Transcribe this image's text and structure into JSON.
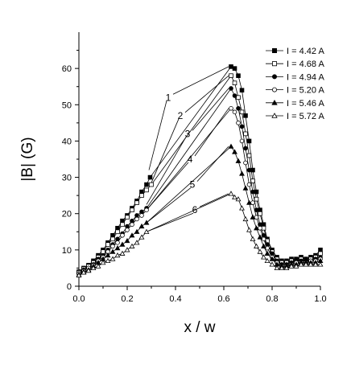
{
  "chart_data": {
    "type": "line",
    "xlabel": "x / w",
    "ylabel": "|B| (G)",
    "xlim": [
      0.0,
      1.0
    ],
    "ylim": [
      0,
      70
    ],
    "xticks": [
      0.0,
      0.2,
      0.4,
      0.6,
      0.8,
      1.0
    ],
    "xtick_labels": [
      "0.0",
      "0.2",
      "0.4",
      "0.6",
      "0.8",
      "1.0"
    ],
    "yticks": [
      0,
      10,
      20,
      30,
      40,
      50,
      60
    ],
    "ytick_labels": [
      "0",
      "10",
      "20",
      "30",
      "40",
      "50",
      "60"
    ],
    "grid": false,
    "legend_position": "top-right",
    "series": [
      {
        "name": "I = 4.42 A",
        "marker": "square-filled",
        "x": [
          0.0,
          0.02,
          0.04,
          0.06,
          0.08,
          0.1,
          0.12,
          0.14,
          0.16,
          0.18,
          0.2,
          0.22,
          0.24,
          0.26,
          0.28,
          0.295,
          0.63,
          0.645,
          0.66,
          0.675,
          0.69,
          0.705,
          0.72,
          0.735,
          0.75,
          0.765,
          0.78,
          0.8,
          0.82,
          0.84,
          0.86,
          0.88,
          0.9,
          0.92,
          0.94,
          0.96,
          0.98,
          1.0
        ],
        "y": [
          4.0,
          5.0,
          5.8,
          7.0,
          8.5,
          10.0,
          12.0,
          14.0,
          16.0,
          18.0,
          19.5,
          21.5,
          23.5,
          26.0,
          28.0,
          30.0,
          60.5,
          60.0,
          58.0,
          54.0,
          47.0,
          40.0,
          32.0,
          26.0,
          21.0,
          17.0,
          13.0,
          10.0,
          8.0,
          7.0,
          7.0,
          7.5,
          7.5,
          8.0,
          7.5,
          8.0,
          8.5,
          10.0
        ]
      },
      {
        "name": "I = 4.68 A",
        "marker": "square-open",
        "x": [
          0.0,
          0.02,
          0.04,
          0.06,
          0.08,
          0.1,
          0.12,
          0.14,
          0.16,
          0.18,
          0.2,
          0.22,
          0.24,
          0.26,
          0.28,
          0.3,
          0.63,
          0.645,
          0.66,
          0.675,
          0.69,
          0.705,
          0.72,
          0.735,
          0.75,
          0.765,
          0.78,
          0.8,
          0.82,
          0.84,
          0.86,
          0.88,
          0.9,
          0.92,
          0.94,
          0.96,
          0.98,
          1.0
        ],
        "y": [
          3.8,
          4.8,
          5.5,
          6.5,
          8.0,
          9.5,
          11.5,
          13.0,
          15.0,
          17.0,
          19.0,
          21.0,
          23.0,
          25.0,
          26.5,
          28.0,
          58.0,
          56.0,
          52.0,
          48.0,
          42.0,
          36.0,
          29.0,
          24.0,
          20.0,
          16.0,
          12.5,
          9.5,
          7.5,
          6.5,
          6.5,
          7.0,
          7.0,
          7.5,
          7.0,
          7.5,
          8.0,
          9.0
        ]
      },
      {
        "name": "I = 4.94 A",
        "marker": "circle-filled",
        "x": [
          0.0,
          0.02,
          0.04,
          0.06,
          0.08,
          0.1,
          0.12,
          0.14,
          0.16,
          0.18,
          0.2,
          0.22,
          0.24,
          0.26,
          0.28,
          0.63,
          0.645,
          0.66,
          0.675,
          0.69,
          0.705,
          0.72,
          0.735,
          0.75,
          0.765,
          0.78,
          0.8,
          0.82,
          0.84,
          0.86,
          0.88,
          0.9,
          0.92,
          0.94,
          0.96,
          0.98,
          1.0
        ],
        "y": [
          3.5,
          4.5,
          5.0,
          6.0,
          7.5,
          8.5,
          10.0,
          11.5,
          13.0,
          14.5,
          16.5,
          18.0,
          19.5,
          20.5,
          21.5,
          54.5,
          52.5,
          49.0,
          44.0,
          38.0,
          32.0,
          26.0,
          21.0,
          17.0,
          14.0,
          11.5,
          9.0,
          7.0,
          6.0,
          6.0,
          6.5,
          7.0,
          7.0,
          7.0,
          7.0,
          7.5,
          8.0
        ]
      },
      {
        "name": "I = 5.20 A",
        "marker": "circle-open",
        "x": [
          0.0,
          0.02,
          0.04,
          0.06,
          0.08,
          0.1,
          0.12,
          0.14,
          0.16,
          0.18,
          0.2,
          0.22,
          0.24,
          0.26,
          0.28,
          0.63,
          0.645,
          0.66,
          0.675,
          0.69,
          0.705,
          0.72,
          0.735,
          0.75,
          0.765,
          0.78,
          0.8,
          0.82,
          0.84,
          0.86,
          0.88,
          0.9,
          0.92,
          0.94,
          0.96,
          0.98,
          1.0
        ],
        "y": [
          3.5,
          4.2,
          5.0,
          5.8,
          7.0,
          8.0,
          9.5,
          11.0,
          12.0,
          14.0,
          15.5,
          17.0,
          18.5,
          19.5,
          21.0,
          49.0,
          48.0,
          45.0,
          40.0,
          34.0,
          28.0,
          23.0,
          19.0,
          16.0,
          13.0,
          10.5,
          8.0,
          6.5,
          5.5,
          5.5,
          6.0,
          6.5,
          6.5,
          6.5,
          7.0,
          7.0,
          7.5
        ]
      },
      {
        "name": "I = 5.46 A",
        "marker": "triangle-filled",
        "x": [
          0.0,
          0.02,
          0.04,
          0.06,
          0.08,
          0.1,
          0.12,
          0.14,
          0.16,
          0.18,
          0.2,
          0.22,
          0.24,
          0.26,
          0.28,
          0.63,
          0.645,
          0.66,
          0.675,
          0.69,
          0.705,
          0.72,
          0.735,
          0.75,
          0.765,
          0.78,
          0.8,
          0.82,
          0.84,
          0.86,
          0.88,
          0.9,
          0.92,
          0.94,
          0.96,
          0.98,
          1.0
        ],
        "y": [
          3.2,
          4.0,
          4.5,
          5.5,
          6.5,
          7.5,
          8.5,
          9.5,
          10.5,
          11.5,
          12.5,
          14.0,
          15.0,
          16.5,
          17.5,
          38.5,
          37.0,
          34.5,
          31.0,
          27.0,
          23.0,
          19.0,
          16.0,
          13.5,
          11.0,
          9.0,
          7.5,
          6.0,
          5.5,
          5.5,
          6.0,
          6.0,
          6.5,
          6.5,
          6.5,
          6.5,
          7.0
        ]
      },
      {
        "name": "I = 5.72 A",
        "marker": "triangle-open",
        "x": [
          0.0,
          0.02,
          0.04,
          0.06,
          0.08,
          0.1,
          0.12,
          0.14,
          0.16,
          0.18,
          0.2,
          0.22,
          0.24,
          0.26,
          0.28,
          0.63,
          0.645,
          0.66,
          0.675,
          0.69,
          0.705,
          0.72,
          0.735,
          0.75,
          0.765,
          0.78,
          0.8,
          0.82,
          0.84,
          0.86,
          0.88,
          0.9,
          0.92,
          0.94,
          0.96,
          0.98,
          1.0
        ],
        "y": [
          3.0,
          3.8,
          4.3,
          5.0,
          5.5,
          6.5,
          7.0,
          7.5,
          8.5,
          9.0,
          10.0,
          11.0,
          12.0,
          13.5,
          15.0,
          25.5,
          24.5,
          24.0,
          21.5,
          18.5,
          15.5,
          13.0,
          11.0,
          9.5,
          8.0,
          7.0,
          6.0,
          5.0,
          5.0,
          5.0,
          5.5,
          5.5,
          6.0,
          6.0,
          6.0,
          6.0,
          6.0
        ]
      }
    ],
    "annotations": [
      {
        "text": "1",
        "x": 0.37,
        "y": 52.0,
        "target_x": 0.29,
        "target_y": 32.0,
        "target2_x": 0.62,
        "target2_y": 60.5
      },
      {
        "text": "2",
        "x": 0.42,
        "y": 47.0,
        "target_x": 0.3,
        "target_y": 28.5,
        "target2_x": 0.62,
        "target2_y": 58.0
      },
      {
        "text": "3",
        "x": 0.45,
        "y": 42.0,
        "target_x": 0.28,
        "target_y": 22.5,
        "target2_x": 0.62,
        "target2_y": 54.5
      },
      {
        "text": "4",
        "x": 0.46,
        "y": 35.0,
        "target_x": 0.28,
        "target_y": 21.0,
        "target2_x": 0.62,
        "target2_y": 49.0
      },
      {
        "text": "5",
        "x": 0.47,
        "y": 28.0,
        "target_x": 0.28,
        "target_y": 17.5,
        "target2_x": 0.62,
        "target2_y": 38.5
      },
      {
        "text": "6",
        "x": 0.48,
        "y": 21.0,
        "target_x": 0.28,
        "target_y": 15.0,
        "target2_x": 0.62,
        "target2_y": 25.5
      }
    ]
  }
}
